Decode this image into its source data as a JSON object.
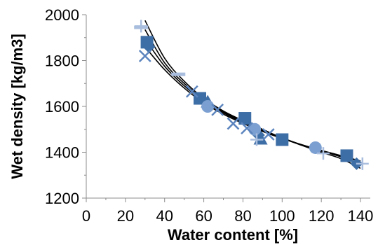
{
  "chart_data": {
    "type": "scatter",
    "title": "",
    "xlabel": "Water content [%]",
    "ylabel": "Wet density [kg/m3]",
    "xlim": [
      0,
      145
    ],
    "ylim": [
      1200,
      2000
    ],
    "xticks": [
      0,
      20,
      40,
      60,
      80,
      100,
      120,
      140
    ],
    "yticks": [
      1200,
      1400,
      1600,
      1800,
      2000
    ],
    "grid": false,
    "legend": "none",
    "series": [
      {
        "marker": "square",
        "color": "#3E6EA6",
        "points": [
          [
            31,
            1880
          ],
          [
            58,
            1635
          ],
          [
            81,
            1548
          ],
          [
            100,
            1455
          ],
          [
            133,
            1385
          ]
        ]
      },
      {
        "marker": "diamond",
        "color": "#3E6EA6",
        "points": [
          [
            32,
            1860
          ],
          [
            88,
            1475
          ],
          [
            138,
            1350
          ]
        ]
      },
      {
        "marker": "triangle",
        "color": "#3E6EA6",
        "points": [
          [
            62,
            1620
          ],
          [
            89,
            1458
          ]
        ]
      },
      {
        "marker": "circle",
        "color": "#7B9FD0",
        "points": [
          [
            62,
            1600
          ],
          [
            86,
            1500
          ],
          [
            117,
            1420
          ]
        ]
      },
      {
        "marker": "x",
        "color": "#5B84BE",
        "points": [
          [
            30,
            1820
          ],
          [
            54,
            1665
          ],
          [
            67,
            1585
          ],
          [
            75,
            1525
          ],
          [
            82,
            1505
          ],
          [
            93,
            1478
          ]
        ]
      },
      {
        "marker": "plus",
        "color": "#A9BEDE",
        "points": [
          [
            28,
            1950
          ],
          [
            87,
            1455
          ],
          [
            121,
            1395
          ],
          [
            141,
            1350
          ]
        ]
      },
      {
        "marker": "dash",
        "color": "#A9BEDE",
        "points": [
          [
            28,
            1945
          ],
          [
            47,
            1740
          ]
        ]
      }
    ],
    "trendlines": [
      {
        "color": "#000000",
        "points": [
          [
            30,
            1975
          ],
          [
            40,
            1810
          ],
          [
            50,
            1710
          ],
          [
            60,
            1635
          ],
          [
            70,
            1580
          ],
          [
            80,
            1538
          ],
          [
            90,
            1500
          ],
          [
            100,
            1462
          ],
          [
            110,
            1430
          ],
          [
            120,
            1400
          ],
          [
            130,
            1372
          ],
          [
            140,
            1330
          ]
        ]
      },
      {
        "color": "#000000",
        "points": [
          [
            30,
            1935
          ],
          [
            40,
            1790
          ],
          [
            50,
            1700
          ],
          [
            60,
            1630
          ],
          [
            70,
            1576
          ],
          [
            80,
            1534
          ],
          [
            90,
            1497
          ],
          [
            100,
            1463
          ],
          [
            110,
            1432
          ],
          [
            120,
            1405
          ],
          [
            130,
            1380
          ],
          [
            140,
            1345
          ]
        ]
      },
      {
        "color": "#000000",
        "points": [
          [
            30,
            1895
          ],
          [
            40,
            1775
          ],
          [
            50,
            1690
          ],
          [
            60,
            1622
          ],
          [
            70,
            1572
          ],
          [
            80,
            1530
          ],
          [
            90,
            1494
          ],
          [
            100,
            1462
          ],
          [
            110,
            1433
          ],
          [
            120,
            1408
          ],
          [
            130,
            1385
          ],
          [
            140,
            1358
          ]
        ]
      },
      {
        "color": "#000000",
        "points": [
          [
            30,
            1860
          ],
          [
            40,
            1760
          ],
          [
            50,
            1680
          ],
          [
            60,
            1615
          ],
          [
            70,
            1566
          ],
          [
            80,
            1526
          ],
          [
            90,
            1491
          ],
          [
            100,
            1460
          ],
          [
            110,
            1432
          ],
          [
            120,
            1407
          ],
          [
            130,
            1385
          ],
          [
            140,
            1362
          ]
        ]
      }
    ]
  }
}
